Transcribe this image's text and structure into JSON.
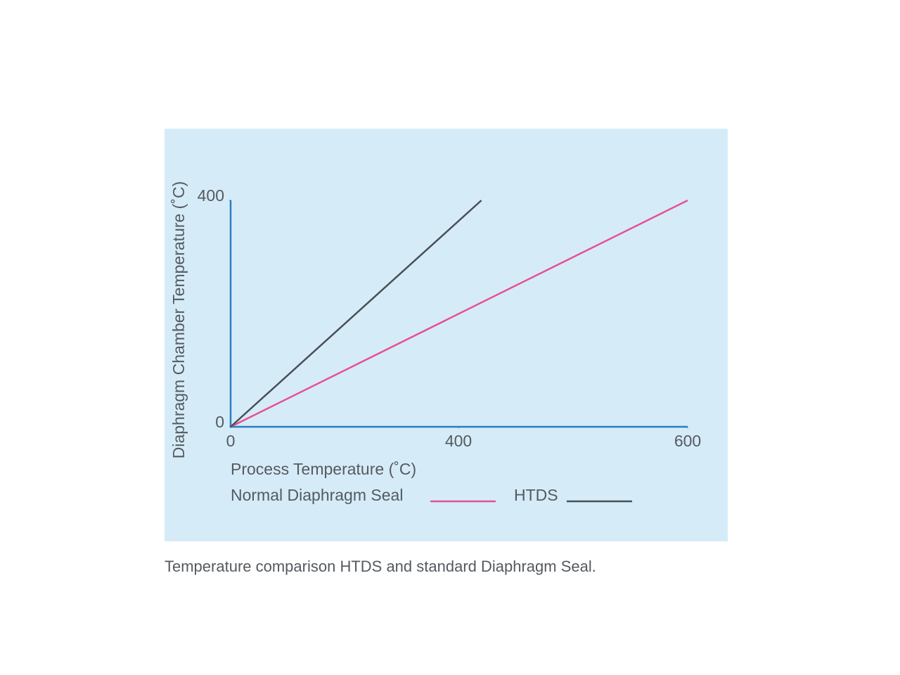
{
  "chart_data": {
    "type": "line",
    "xlabel": "Process Temperature (˚C)",
    "ylabel": "Diaphragm Chamber Temperature (˚C)",
    "caption": "Temperature comparison HTDS and standard Diaphragm Seal.",
    "xlim": [
      0,
      600
    ],
    "xticks": [
      0,
      400,
      600
    ],
    "ylim": [
      0,
      400
    ],
    "yticks": [
      0,
      400
    ],
    "grid": false,
    "series": [
      {
        "name": "Normal Diaphragm Seal",
        "color": "#e8508f",
        "x": [
          0,
          600
        ],
        "values": [
          0,
          400
        ]
      },
      {
        "name": "HTDS",
        "color": "#4a4f55",
        "x": [
          0,
          420
        ],
        "values": [
          0,
          400
        ]
      }
    ]
  }
}
